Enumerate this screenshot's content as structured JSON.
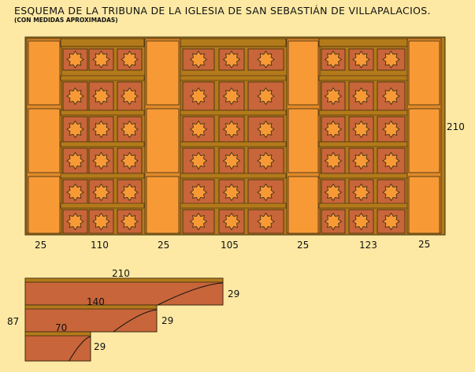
{
  "title": "ESQUEMA DE LA TRIBUNA DE LA IGLESIA DE SAN SEBASTIÁN DE VILLAPALACIOS.",
  "subtitle": "(CON MEDIDAS APROXIMADAS)",
  "labels": {
    "height": "210",
    "widths": [
      "25",
      "110",
      "25",
      "105",
      "25",
      "123",
      "25"
    ],
    "profile_depth": "87",
    "profile_lengths": [
      "210",
      "140",
      "70"
    ],
    "profile_heights": [
      "29",
      "29",
      "29"
    ]
  },
  "colors": {
    "background": "#fde9a4",
    "panel_field": "#c8653a",
    "pillar": "#f79a36",
    "frame": "#b37a1a",
    "rosette": "#f79a36",
    "outline": "#3a2a10"
  }
}
